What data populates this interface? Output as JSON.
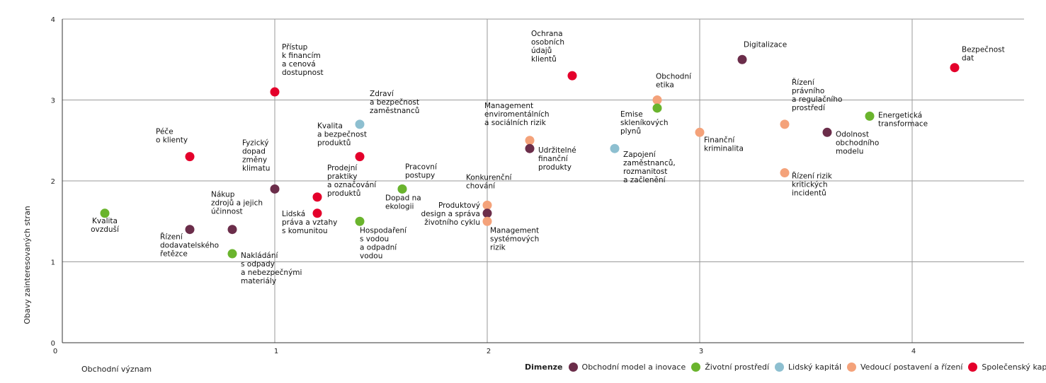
{
  "colors": {
    "obchodni": "#6b2d4a",
    "zivotni": "#6ab42d",
    "lidsky": "#8dbfd0",
    "vedouci": "#f4a27a",
    "spolecensky": "#e4002b"
  },
  "chart_data": {
    "type": "scatter",
    "title": "",
    "xlabel": "Obchodní význam",
    "ylabel": "Obavy zainteresovaných stran",
    "xlim": [
      0,
      4.5
    ],
    "ylim": [
      0,
      4
    ],
    "xticks": [
      "0",
      "1",
      "2",
      "3",
      "4"
    ],
    "yticks": [
      "0",
      "1",
      "2",
      "3",
      "4"
    ],
    "grid": true,
    "legend": {
      "title": "Dimenze",
      "items": [
        {
          "key": "obchodni",
          "label": "Obchodní model a inovace"
        },
        {
          "key": "zivotni",
          "label": "Životní prostředí"
        },
        {
          "key": "lidsky",
          "label": "Lidský kapitál"
        },
        {
          "key": "vedouci",
          "label": "Vedoucí postavení a řízení"
        },
        {
          "key": "spolecensky",
          "label": "Společenský kapitál"
        }
      ]
    },
    "points": [
      {
        "x": 0.2,
        "y": 1.6,
        "cat": "zivotni",
        "label": [
          "Kvalita",
          "ovzduší"
        ]
      },
      {
        "x": 0.6,
        "y": 1.4,
        "cat": "obchodni",
        "label": [
          "Řízení",
          "dodavatelského",
          "řetězce"
        ]
      },
      {
        "x": 0.6,
        "y": 2.3,
        "cat": "spolecensky",
        "label": [
          "Péče",
          "o klienty"
        ]
      },
      {
        "x": 0.8,
        "y": 1.4,
        "cat": "obchodni",
        "label": [
          "Nákup",
          "zdrojů a jejich",
          "účinnost"
        ]
      },
      {
        "x": 0.8,
        "y": 1.1,
        "cat": "zivotni",
        "label": [
          "Nakládání",
          "s odpady",
          "a nebezpečnými",
          "materiály"
        ]
      },
      {
        "x": 1.0,
        "y": 1.9,
        "cat": "obchodni",
        "label": [
          "Fyzický",
          "dopad",
          "změny",
          "klimatu"
        ]
      },
      {
        "x": 1.0,
        "y": 3.1,
        "cat": "spolecensky",
        "label": [
          "Přístup",
          "k financím",
          "a cenová",
          "dostupnost"
        ]
      },
      {
        "x": 1.2,
        "y": 1.8,
        "cat": "spolecensky",
        "label": [
          "Prodejní",
          "praktiky",
          "a označování",
          "produktů"
        ]
      },
      {
        "x": 1.2,
        "y": 1.6,
        "cat": "spolecensky",
        "label": [
          "Lidská",
          "práva a vztahy",
          "s komunitou"
        ]
      },
      {
        "x": 1.4,
        "y": 2.3,
        "cat": "spolecensky",
        "label": [
          "Kvalita",
          "a bezpečnost",
          "produktů"
        ]
      },
      {
        "x": 1.4,
        "y": 2.7,
        "cat": "lidsky",
        "label": [
          "Zdraví",
          "a bezpečnost",
          "zaměstnanců"
        ]
      },
      {
        "x": 1.4,
        "y": 1.5,
        "cat": "zivotni",
        "label": [
          "Hospodaření",
          "s vodou",
          "a odpadní",
          "vodou"
        ]
      },
      {
        "x": 1.6,
        "y": 1.9,
        "cat": "lidsky",
        "label": [
          "Pracovní",
          "postupy"
        ]
      },
      {
        "x": 1.6,
        "y": 1.9,
        "cat": "zivotni",
        "label": [
          "Dopad na",
          "ekologii"
        ]
      },
      {
        "x": 2.0,
        "y": 1.7,
        "cat": "vedouci",
        "label": [
          "Konkurenční",
          "chování"
        ]
      },
      {
        "x": 2.0,
        "y": 1.6,
        "cat": "obchodni",
        "label": [
          "Produktový",
          "design a správa",
          "životního cyklu"
        ]
      },
      {
        "x": 2.0,
        "y": 1.5,
        "cat": "vedouci",
        "label": [
          "Management",
          "systémových",
          "rizik"
        ]
      },
      {
        "x": 2.2,
        "y": 2.5,
        "cat": "vedouci",
        "label": [
          "Management",
          "enviromentálních",
          "a sociálních rizik"
        ]
      },
      {
        "x": 2.2,
        "y": 2.4,
        "cat": "obchodni",
        "label": [
          "Udržitelné",
          "finanční",
          "produkty"
        ]
      },
      {
        "x": 2.4,
        "y": 3.3,
        "cat": "spolecensky",
        "label": [
          "Ochrana",
          "osobních",
          "údajů",
          "klientů"
        ]
      },
      {
        "x": 2.6,
        "y": 2.4,
        "cat": "lidsky",
        "label": [
          "Zapojení",
          "zaměstnanců,",
          "rozmanitost",
          "a začlenění"
        ]
      },
      {
        "x": 2.8,
        "y": 3.0,
        "cat": "vedouci",
        "label": [
          "Obchodní",
          "etika"
        ]
      },
      {
        "x": 2.8,
        "y": 2.9,
        "cat": "zivotni",
        "label": [
          "Emise",
          "skleníkových",
          "plynů"
        ]
      },
      {
        "x": 3.0,
        "y": 2.6,
        "cat": "vedouci",
        "label": [
          "Finanční",
          "kriminalita"
        ]
      },
      {
        "x": 3.2,
        "y": 3.5,
        "cat": "obchodni",
        "label": [
          "Digitalizace"
        ]
      },
      {
        "x": 3.4,
        "y": 2.7,
        "cat": "vedouci",
        "label": [
          "Řízení",
          "právního",
          "a regulačního",
          "prostředí"
        ]
      },
      {
        "x": 3.4,
        "y": 2.1,
        "cat": "vedouci",
        "label": [
          "Řízení rizik",
          "kritických",
          "incidentů"
        ]
      },
      {
        "x": 3.6,
        "y": 2.6,
        "cat": "obchodni",
        "label": [
          "Odolnost",
          "obchodního",
          "modelu"
        ]
      },
      {
        "x": 3.8,
        "y": 2.8,
        "cat": "zivotni",
        "label": [
          "Energetická",
          "transformace"
        ]
      },
      {
        "x": 4.2,
        "y": 3.4,
        "cat": "spolecensky",
        "label": [
          "Bezpečnost",
          "dat"
        ]
      }
    ]
  }
}
